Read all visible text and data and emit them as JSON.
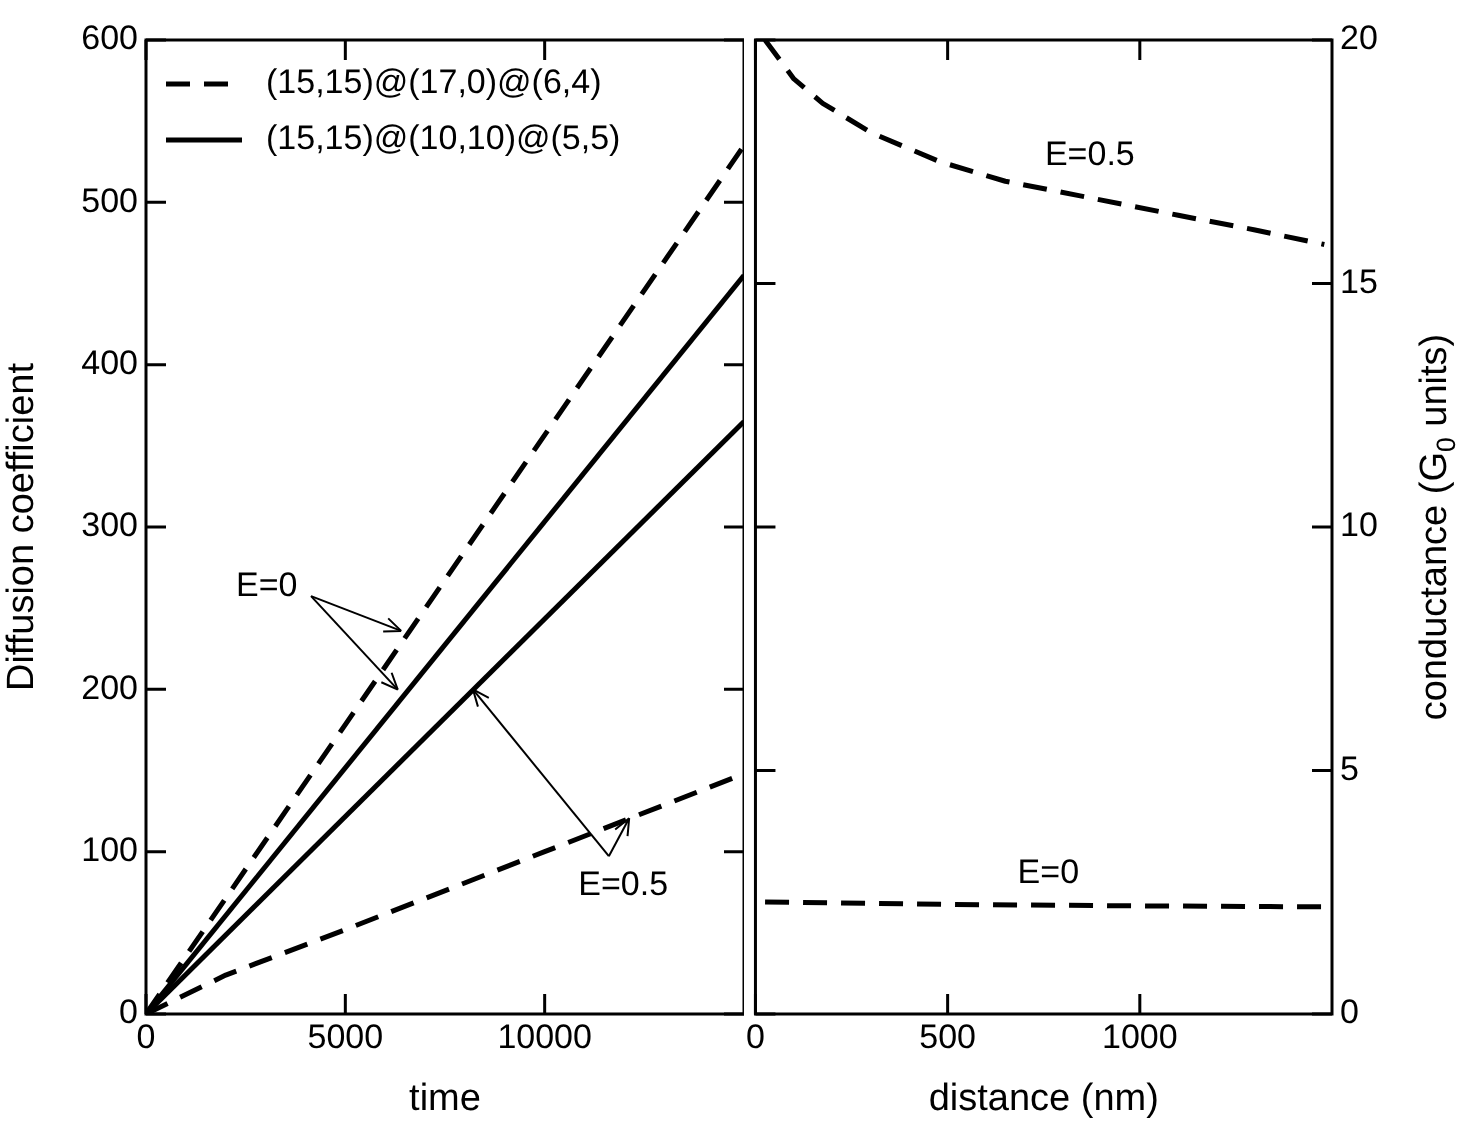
{
  "chart_data": [
    {
      "type": "line",
      "xlabel": "time",
      "ylabel": "Diffusion coefficient",
      "xlim": [
        0,
        15000
      ],
      "xticks": [
        0,
        5000,
        10000
      ],
      "ylim": [
        0,
        600
      ],
      "yticks": [
        0,
        100,
        200,
        300,
        400,
        500,
        600
      ],
      "legend": "top left",
      "marker": "none",
      "grid": false,
      "annotations": [
        {
          "text": "E=0",
          "x": 6400,
          "y": 236
        },
        {
          "text": "E=0.5",
          "x": 8200,
          "y": 200
        }
      ],
      "series": [
        {
          "name": "(15,15)@(17,0)@(6,4)",
          "color": "#000000",
          "line_style": "dashed",
          "x": [
            0,
            15000
          ],
          "values": [
            0,
            535
          ]
        },
        {
          "name": "(15,15)@(10,10)@(5,5)",
          "color": "#000000",
          "line_style": "solid",
          "x": [
            0,
            15000
          ],
          "values": [
            0,
            455
          ]
        },
        {
          "color": "#000000",
          "line_style": "solid",
          "x": [
            0,
            15000
          ],
          "values": [
            0,
            365
          ]
        },
        {
          "color": "#000000",
          "line_style": "dashed",
          "x": [
            0,
            2000,
            5000,
            10000,
            15000
          ],
          "values": [
            0,
            24,
            52,
            100,
            148
          ]
        }
      ]
    },
    {
      "type": "line",
      "xlabel": "distance (nm)",
      "y2label": "conductance (G$_{0}$ units)",
      "xlim": [
        0,
        1500
      ],
      "xticks": [
        0,
        500,
        1000
      ],
      "y2lim": [
        0,
        20
      ],
      "y2ticks": [
        0,
        5,
        10,
        15,
        20
      ],
      "marker": "none",
      "grid": false,
      "annotations": [
        "E=0.5",
        "E=0"
      ],
      "series": [
        {
          "color": "#000000",
          "line_style": "dashed",
          "axis": "y2",
          "x": [
            25,
            100,
            175,
            300,
            480,
            650,
            845,
            1100,
            1300,
            1480
          ],
          "values": [
            20,
            19.2,
            18.7,
            18.1,
            17.5,
            17.1,
            16.8,
            16.4,
            16.1,
            15.8
          ]
        },
        {
          "color": "#000000",
          "line_style": "dashed",
          "axis": "y2",
          "x": [
            25,
            500,
            1000,
            1480
          ],
          "values": [
            2.3,
            2.25,
            2.22,
            2.2
          ]
        }
      ]
    }
  ]
}
